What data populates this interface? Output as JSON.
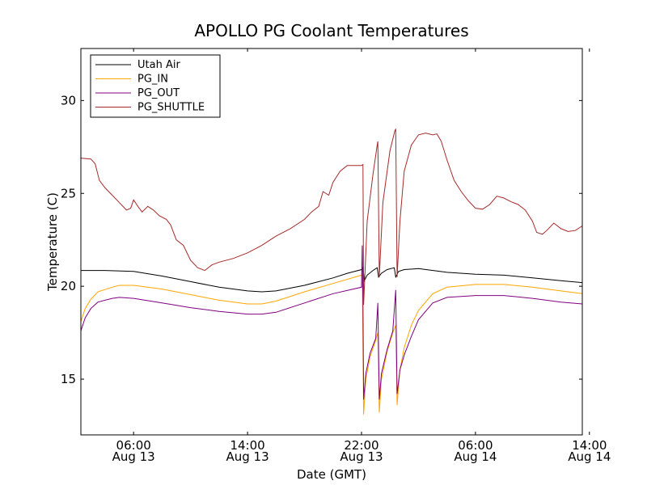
{
  "chart_data": {
    "type": "line",
    "title": "APOLLO PG Coolant Temperatures",
    "xlabel": "Date (GMT)",
    "ylabel": "Temperature (C)",
    "xlim": [
      2.3,
      37.5
    ],
    "ylim": [
      12,
      32.8
    ],
    "grid": false,
    "legend_position": "top-left",
    "x_unit": "hours since Aug 13 00:00 GMT",
    "x_ticks": [
      {
        "value": 6,
        "line1": "06:00",
        "line2": "Aug 13"
      },
      {
        "value": 14,
        "line1": "14:00",
        "line2": "Aug 13"
      },
      {
        "value": 22,
        "line1": "22:00",
        "line2": "Aug 13"
      },
      {
        "value": 30,
        "line1": "06:00",
        "line2": "Aug 14"
      },
      {
        "value": 38,
        "line1": "14:00",
        "line2": "Aug 14"
      }
    ],
    "y_ticks": [
      {
        "value": 15,
        "label": "15"
      },
      {
        "value": 20,
        "label": "20"
      },
      {
        "value": 25,
        "label": "25"
      },
      {
        "value": 30,
        "label": "30"
      }
    ],
    "series": [
      {
        "name": "Utah Air",
        "color": "#000000",
        "points": [
          [
            2.3,
            20.85
          ],
          [
            4,
            20.85
          ],
          [
            6,
            20.8
          ],
          [
            8,
            20.55
          ],
          [
            10,
            20.25
          ],
          [
            12,
            19.95
          ],
          [
            14,
            19.75
          ],
          [
            15,
            19.7
          ],
          [
            16,
            19.75
          ],
          [
            18,
            20.05
          ],
          [
            20,
            20.45
          ],
          [
            21,
            20.7
          ],
          [
            22,
            20.9
          ],
          [
            22.1,
            21.0
          ],
          [
            22.2,
            20.3
          ],
          [
            22.4,
            20.6
          ],
          [
            22.8,
            20.85
          ],
          [
            23.1,
            21.0
          ],
          [
            23.2,
            20.5
          ],
          [
            23.4,
            20.7
          ],
          [
            23.8,
            20.9
          ],
          [
            24.3,
            21.0
          ],
          [
            24.4,
            20.5
          ],
          [
            24.6,
            20.8
          ],
          [
            25,
            20.9
          ],
          [
            26,
            20.95
          ],
          [
            28,
            20.75
          ],
          [
            30,
            20.65
          ],
          [
            32,
            20.6
          ],
          [
            34,
            20.45
          ],
          [
            36,
            20.3
          ],
          [
            37.5,
            20.2
          ]
        ]
      },
      {
        "name": "PG_IN",
        "color": "#ffa500",
        "points": [
          [
            2.3,
            18.1
          ],
          [
            2.6,
            18.8
          ],
          [
            3,
            19.3
          ],
          [
            3.5,
            19.7
          ],
          [
            4.5,
            19.95
          ],
          [
            5,
            20.05
          ],
          [
            6,
            20.05
          ],
          [
            8,
            19.85
          ],
          [
            10,
            19.55
          ],
          [
            12,
            19.25
          ],
          [
            14,
            19.05
          ],
          [
            15,
            19.05
          ],
          [
            16,
            19.2
          ],
          [
            18,
            19.7
          ],
          [
            20,
            20.15
          ],
          [
            22,
            20.6
          ],
          [
            22.05,
            20.65
          ],
          [
            22.15,
            13.1
          ],
          [
            22.3,
            15.0
          ],
          [
            22.6,
            16.2
          ],
          [
            23,
            17.1
          ],
          [
            23.15,
            17.5
          ],
          [
            23.25,
            13.2
          ],
          [
            23.4,
            15.0
          ],
          [
            23.8,
            16.5
          ],
          [
            24.2,
            17.5
          ],
          [
            24.4,
            17.9
          ],
          [
            24.5,
            13.6
          ],
          [
            24.7,
            15.5
          ],
          [
            25,
            16.7
          ],
          [
            25.5,
            17.9
          ],
          [
            26,
            18.7
          ],
          [
            27,
            19.6
          ],
          [
            28,
            19.95
          ],
          [
            30,
            20.1
          ],
          [
            32,
            20.1
          ],
          [
            34,
            19.95
          ],
          [
            36,
            19.75
          ],
          [
            37.5,
            19.6
          ]
        ]
      },
      {
        "name": "PG_OUT",
        "color": "#800080",
        "points": [
          [
            2.3,
            17.6
          ],
          [
            2.6,
            18.3
          ],
          [
            3,
            18.8
          ],
          [
            3.5,
            19.15
          ],
          [
            4.5,
            19.35
          ],
          [
            5,
            19.4
          ],
          [
            6,
            19.35
          ],
          [
            8,
            19.1
          ],
          [
            10,
            18.85
          ],
          [
            12,
            18.65
          ],
          [
            14,
            18.5
          ],
          [
            15,
            18.5
          ],
          [
            16,
            18.6
          ],
          [
            18,
            19.1
          ],
          [
            20,
            19.6
          ],
          [
            22,
            19.95
          ],
          [
            22.05,
            22.2
          ],
          [
            22.1,
            19.2
          ],
          [
            22.15,
            13.9
          ],
          [
            22.3,
            15.3
          ],
          [
            22.6,
            16.4
          ],
          [
            23,
            17.2
          ],
          [
            23.15,
            19.1
          ],
          [
            23.25,
            13.9
          ],
          [
            23.4,
            15.3
          ],
          [
            23.8,
            16.6
          ],
          [
            24.2,
            17.6
          ],
          [
            24.4,
            19.8
          ],
          [
            24.5,
            14.2
          ],
          [
            24.7,
            15.5
          ],
          [
            25,
            16.3
          ],
          [
            25.5,
            17.3
          ],
          [
            26,
            18.2
          ],
          [
            27,
            19.1
          ],
          [
            28,
            19.4
          ],
          [
            30,
            19.5
          ],
          [
            32,
            19.5
          ],
          [
            34,
            19.35
          ],
          [
            36,
            19.15
          ],
          [
            37.5,
            19.05
          ]
        ]
      },
      {
        "name": "PG_SHUTTLE",
        "color": "#a52a2a",
        "points": [
          [
            2.3,
            26.9
          ],
          [
            3,
            26.85
          ],
          [
            3.3,
            26.6
          ],
          [
            3.6,
            25.7
          ],
          [
            4,
            25.3
          ],
          [
            4.5,
            24.9
          ],
          [
            5,
            24.5
          ],
          [
            5.5,
            24.1
          ],
          [
            5.8,
            24.2
          ],
          [
            6,
            24.65
          ],
          [
            6.3,
            24.3
          ],
          [
            6.6,
            24.0
          ],
          [
            7,
            24.3
          ],
          [
            7.4,
            24.1
          ],
          [
            7.8,
            23.8
          ],
          [
            8.3,
            23.6
          ],
          [
            8.6,
            23.3
          ],
          [
            9,
            22.5
          ],
          [
            9.5,
            22.2
          ],
          [
            10,
            21.4
          ],
          [
            10.5,
            21.0
          ],
          [
            11,
            20.85
          ],
          [
            11.5,
            21.15
          ],
          [
            12,
            21.3
          ],
          [
            13,
            21.5
          ],
          [
            14,
            21.8
          ],
          [
            15,
            22.2
          ],
          [
            16,
            22.7
          ],
          [
            17,
            23.1
          ],
          [
            18,
            23.6
          ],
          [
            18.5,
            24.0
          ],
          [
            19,
            24.3
          ],
          [
            19.3,
            25.1
          ],
          [
            19.7,
            24.9
          ],
          [
            20,
            25.6
          ],
          [
            20.5,
            26.2
          ],
          [
            21,
            26.5
          ],
          [
            21.5,
            26.5
          ],
          [
            22,
            26.5
          ],
          [
            22.1,
            26.55
          ],
          [
            22.15,
            19.0
          ],
          [
            22.4,
            23.5
          ],
          [
            22.8,
            26.0
          ],
          [
            23.1,
            27.6
          ],
          [
            23.15,
            27.8
          ],
          [
            23.25,
            20.5
          ],
          [
            23.5,
            24.5
          ],
          [
            24,
            27.3
          ],
          [
            24.35,
            28.4
          ],
          [
            24.4,
            28.45
          ],
          [
            24.5,
            20.5
          ],
          [
            24.7,
            23.5
          ],
          [
            25,
            26.2
          ],
          [
            25.5,
            27.6
          ],
          [
            26,
            28.15
          ],
          [
            26.5,
            28.25
          ],
          [
            27,
            28.15
          ],
          [
            27.3,
            28.2
          ],
          [
            27.6,
            27.8
          ],
          [
            28,
            26.8
          ],
          [
            28.5,
            25.7
          ],
          [
            29,
            25.1
          ],
          [
            29.5,
            24.6
          ],
          [
            30,
            24.2
          ],
          [
            30.5,
            24.15
          ],
          [
            31,
            24.4
          ],
          [
            31.5,
            24.85
          ],
          [
            32,
            24.75
          ],
          [
            32.5,
            24.55
          ],
          [
            33,
            24.4
          ],
          [
            33.5,
            24.1
          ],
          [
            34,
            23.5
          ],
          [
            34.3,
            22.9
          ],
          [
            34.7,
            22.8
          ],
          [
            35,
            23.0
          ],
          [
            35.5,
            23.4
          ],
          [
            36,
            23.1
          ],
          [
            36.5,
            22.95
          ],
          [
            37,
            23.0
          ],
          [
            37.5,
            23.25
          ]
        ]
      }
    ]
  }
}
